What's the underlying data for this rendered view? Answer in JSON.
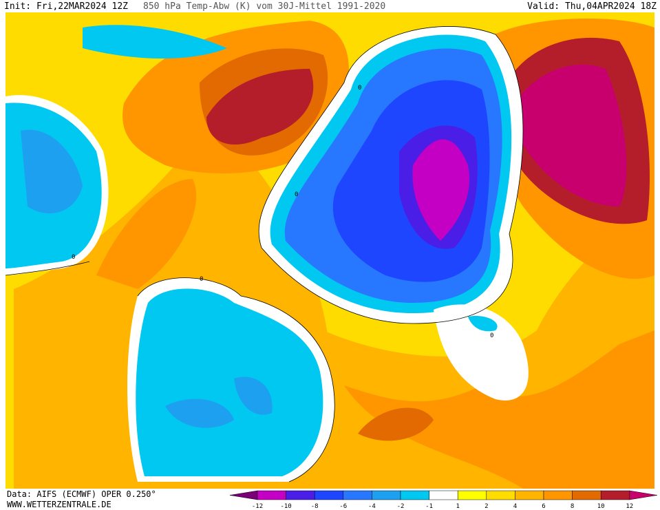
{
  "header": {
    "init": "Init: Fri,22MAR2024 12Z",
    "title": "850 hPa Temp-Abw (K) vom 30J-Mittel 1991-2020",
    "valid": "Valid: Thu,04APR2024 18Z"
  },
  "footer": {
    "source": "Data: AIFS (ECMWF) OPER 0.250°",
    "site": "WWW.WETTERZENTRALE.DE"
  },
  "map": {
    "contour_labels": [
      "0",
      "0",
      "0",
      "0",
      "0"
    ]
  },
  "legend": {
    "labels": [
      "-12",
      "-10",
      "-8",
      "-6",
      "-4",
      "-2",
      "-1",
      "1",
      "2",
      "4",
      "6",
      "8",
      "10",
      "12"
    ],
    "colors": [
      "#7a0078",
      "#c400c4",
      "#4a1ee6",
      "#1e46ff",
      "#2878ff",
      "#1ea0f0",
      "#00c8f0",
      "#ffffff",
      "#ffff00",
      "#ffdc00",
      "#ffb400",
      "#ff9600",
      "#e26a00",
      "#b41e2a",
      "#c8006e"
    ]
  }
}
